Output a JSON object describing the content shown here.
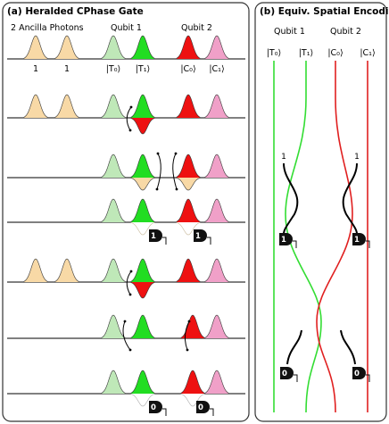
{
  "panel_a": {
    "title": "(a) Heralded CPhase Gate",
    "ancilla_label": "2 Ancilla Photons",
    "qubit1_label": "Qubit 1",
    "qubit2_label": "Qubit 2",
    "mode_labels": [
      "1",
      "1",
      "|T₀⟩",
      "|T₁⟩",
      "|C₀⟩",
      "|C₁⟩"
    ],
    "detector_outcome_top": "1",
    "detector_outcome_bottom": "0"
  },
  "panel_b": {
    "title": "(b) Equiv. Spatial Encoding",
    "qubit1_label": "Qubit 1",
    "qubit2_label": "Qubit 2",
    "mode_labels": [
      "|T₀⟩",
      "|T₁⟩",
      "|C₀⟩",
      "|C₁⟩"
    ],
    "input_left": "1",
    "input_right": "1",
    "detector_top": "1",
    "detector_bottom": "0"
  },
  "colors": {
    "ancilla": "#f8d9a6",
    "t0": "#bfe8b8",
    "t1": "#22dd22",
    "c0": "#ee1111",
    "c1": "#f0a0c8",
    "green_line": "#33dd33",
    "red_line": "#e02020"
  }
}
